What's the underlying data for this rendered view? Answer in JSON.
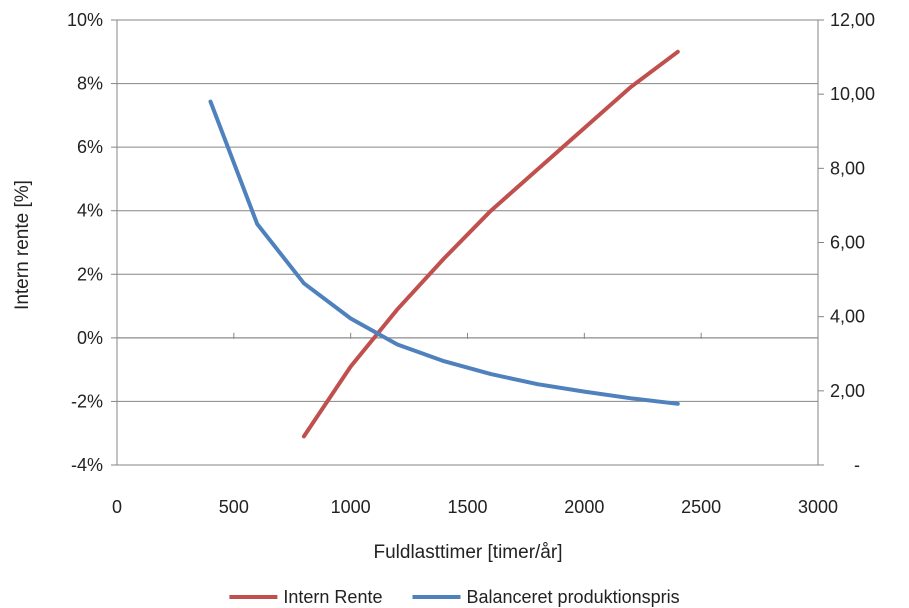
{
  "chart_data": {
    "type": "line",
    "title": "",
    "xlabel": "Fuldlasttimer [timer/år]",
    "ylabel": "Intern rente [%]",
    "y2label": "",
    "xlim": [
      0,
      3000
    ],
    "ylim": [
      -4,
      10
    ],
    "y2lim": [
      0,
      12
    ],
    "x_ticks": [
      0,
      500,
      1000,
      1500,
      2000,
      2500,
      3000
    ],
    "x_tick_labels": [
      "0",
      "500",
      "1000",
      "1500",
      "2000",
      "2500",
      "3000"
    ],
    "y_ticks": [
      -4,
      -2,
      0,
      2,
      4,
      6,
      8,
      10
    ],
    "y_tick_labels": [
      "-4%",
      "-2%",
      "0%",
      "2%",
      "4%",
      "6%",
      "8%",
      "10%"
    ],
    "y2_ticks": [
      0,
      2,
      4,
      6,
      8,
      10,
      12
    ],
    "y2_tick_labels": [
      "-",
      "2,00",
      "4,00",
      "6,00",
      "8,00",
      "10,00",
      "12,00"
    ],
    "grid": true,
    "legend_position": "bottom",
    "series": [
      {
        "name": "Intern Rente",
        "axis": "left",
        "color": "#c0504d",
        "x": [
          800,
          1000,
          1200,
          1400,
          1600,
          1800,
          2000,
          2200,
          2400
        ],
        "values": [
          -3.1,
          -0.9,
          0.9,
          2.5,
          4.0,
          5.3,
          6.6,
          7.9,
          9.0
        ]
      },
      {
        "name": "Balanceret produktionspris",
        "axis": "right",
        "color": "#4f81bd",
        "x": [
          400,
          600,
          800,
          1000,
          1200,
          1400,
          1600,
          1800,
          2000,
          2200,
          2400
        ],
        "values": [
          9.8,
          6.5,
          4.9,
          3.95,
          3.25,
          2.8,
          2.45,
          2.18,
          1.98,
          1.8,
          1.65
        ]
      }
    ]
  }
}
